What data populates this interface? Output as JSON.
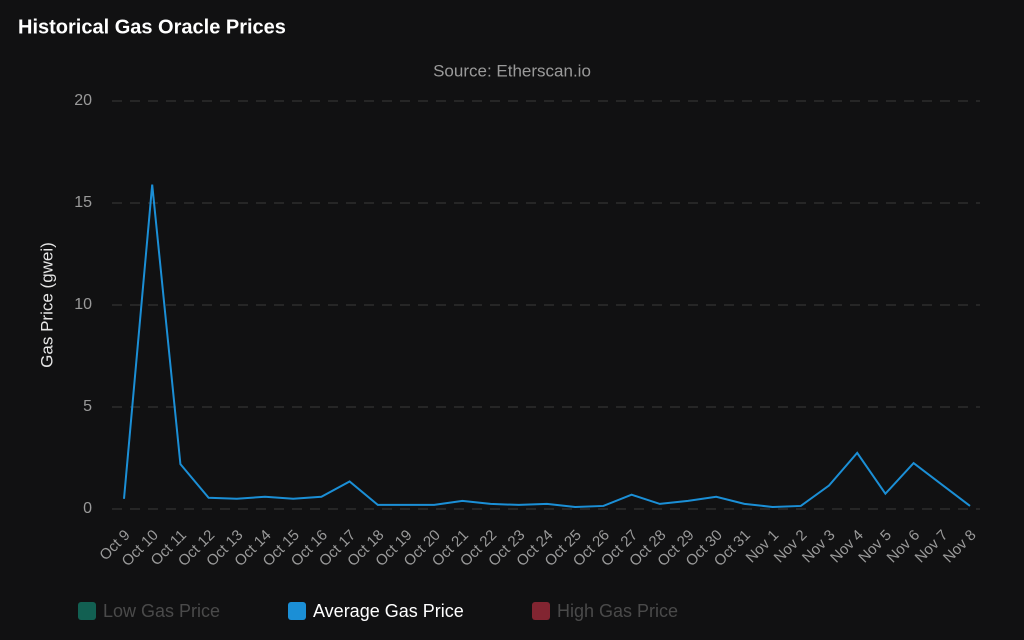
{
  "chart_data": {
    "type": "line",
    "title": "Historical Gas Oracle Prices",
    "subtitle": "Source: Etherscan.io",
    "y_label": "Gas Price (gwei)",
    "categories": [
      "Oct 9",
      "Oct 10",
      "Oct 11",
      "Oct 12",
      "Oct 13",
      "Oct 14",
      "Oct 15",
      "Oct 16",
      "Oct 17",
      "Oct 18",
      "Oct 19",
      "Oct 20",
      "Oct 21",
      "Oct 22",
      "Oct 23",
      "Oct 24",
      "Oct 25",
      "Oct 26",
      "Oct 27",
      "Oct 28",
      "Oct 29",
      "Oct 30",
      "Oct 31",
      "Nov 1",
      "Nov 2",
      "Nov 3",
      "Nov 4",
      "Nov 5",
      "Nov 6",
      "Nov 7",
      "Nov 8"
    ],
    "series": [
      {
        "name": "Low Gas Price",
        "color": "#14a386",
        "hidden": true
      },
      {
        "name": "Average Gas Price",
        "color": "#1b8fd6",
        "values": [
          0.5,
          15.9,
          2.2,
          0.55,
          0.5,
          0.6,
          0.5,
          0.6,
          1.35,
          0.2,
          0.2,
          0.2,
          0.4,
          0.25,
          0.2,
          0.25,
          0.1,
          0.15,
          0.7,
          0.25,
          0.4,
          0.6,
          0.25,
          0.1,
          0.15,
          1.15,
          2.75,
          0.75,
          2.25,
          1.2,
          0.15
        ]
      },
      {
        "name": "High Gas Price",
        "color": "#e0374b",
        "hidden": true
      }
    ],
    "ylim": [
      0,
      20
    ],
    "yticks": [
      0,
      5,
      10,
      15,
      20
    ],
    "grid": true
  }
}
